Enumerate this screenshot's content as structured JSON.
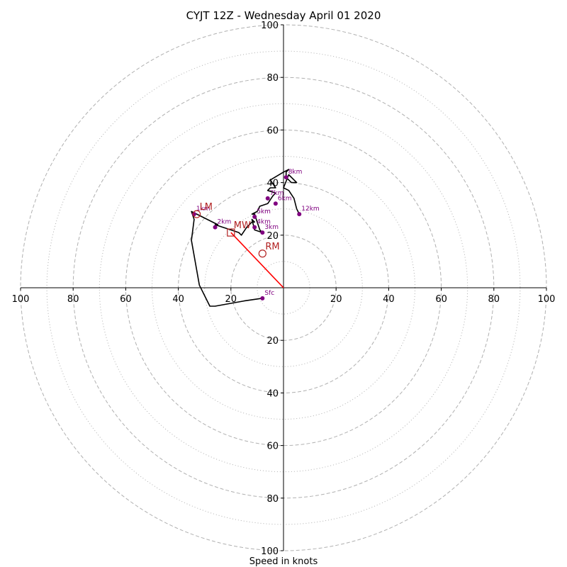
{
  "chart_data": {
    "type": "hodograph",
    "title": "CYJT 12Z - Wednesday April 01 2020",
    "xlabel": "Speed in knots",
    "range": 100,
    "ring_step": 10,
    "dashed_rings": [
      20,
      40,
      60,
      80,
      100
    ],
    "dotted_rings": [
      10,
      30,
      50,
      70,
      90
    ],
    "ticks_x": [
      {
        "value": -100,
        "label": "100"
      },
      {
        "value": -80,
        "label": "80"
      },
      {
        "value": -60,
        "label": "60"
      },
      {
        "value": -40,
        "label": "40"
      },
      {
        "value": -20,
        "label": "20"
      },
      {
        "value": 20,
        "label": "20"
      },
      {
        "value": 40,
        "label": "40"
      },
      {
        "value": 60,
        "label": "60"
      },
      {
        "value": 80,
        "label": "80"
      },
      {
        "value": 100,
        "label": "100"
      }
    ],
    "ticks_y": [
      {
        "value": 100,
        "label": "100"
      },
      {
        "value": 80,
        "label": "80"
      },
      {
        "value": 60,
        "label": "60"
      },
      {
        "value": 40,
        "label": "40"
      },
      {
        "value": 20,
        "label": "20"
      },
      {
        "value": -20,
        "label": "20"
      },
      {
        "value": -40,
        "label": "40"
      },
      {
        "value": -60,
        "label": "60"
      },
      {
        "value": -80,
        "label": "80"
      },
      {
        "value": -100,
        "label": "100"
      }
    ],
    "trace": [
      [
        -8,
        -4
      ],
      [
        -15,
        -5
      ],
      [
        -26,
        -7
      ],
      [
        -28,
        -7
      ],
      [
        -32,
        1
      ],
      [
        -35,
        18
      ],
      [
        -34,
        26
      ],
      [
        -35,
        29
      ],
      [
        -33,
        28
      ],
      [
        -25,
        24
      ],
      [
        -26,
        24
      ],
      [
        -23,
        23
      ],
      [
        -20,
        22
      ],
      [
        -17,
        21
      ],
      [
        -16,
        20
      ],
      [
        -14,
        23
      ],
      [
        -12,
        25
      ],
      [
        -11,
        25
      ],
      [
        -12,
        26
      ],
      [
        -11,
        22
      ],
      [
        -8,
        21
      ],
      [
        -9,
        22
      ],
      [
        -11,
        28
      ],
      [
        -12,
        28
      ],
      [
        -10,
        29
      ],
      [
        -9,
        31
      ],
      [
        -6,
        32
      ],
      [
        -4,
        35
      ],
      [
        -3,
        36
      ],
      [
        -6,
        37
      ],
      [
        -5,
        38
      ],
      [
        -3,
        38
      ],
      [
        -5,
        41
      ],
      [
        0,
        44
      ],
      [
        2,
        45
      ],
      [
        1,
        44
      ],
      [
        1,
        42
      ],
      [
        3,
        40
      ],
      [
        5,
        40
      ],
      [
        2,
        43
      ],
      [
        0,
        38
      ],
      [
        2,
        37
      ],
      [
        4,
        34
      ],
      [
        5,
        30
      ],
      [
        6,
        28
      ]
    ],
    "height_markers": [
      {
        "label": "Sfc",
        "u": -8,
        "v": -4
      },
      {
        "label": "1km",
        "u": -34,
        "v": 28
      },
      {
        "label": "2km",
        "u": -26,
        "v": 23
      },
      {
        "label": "3km",
        "u": -8,
        "v": 21
      },
      {
        "label": "4km",
        "u": -11,
        "v": 23
      },
      {
        "label": "5km",
        "u": -11,
        "v": 27
      },
      {
        "label": "6km",
        "u": -3,
        "v": 32
      },
      {
        "label": "7km",
        "u": -6,
        "v": 34
      },
      {
        "label": "8km",
        "u": 1,
        "v": 42
      },
      {
        "label": "12km",
        "u": 6,
        "v": 28
      }
    ],
    "storm_motion": [
      {
        "label": "LM",
        "u": -33,
        "v": 28,
        "shape": "circle"
      },
      {
        "label": "MW",
        "u": -20,
        "v": 21,
        "shape": "square"
      },
      {
        "label": "RM",
        "u": -8,
        "v": 13,
        "shape": "circle"
      }
    ],
    "mean_wind_vector": {
      "u": -20,
      "v": 21
    },
    "colors": {
      "trace": "#000000",
      "marker": "#800080",
      "storm": "#b22222",
      "vector": "#ff0000",
      "ring": "#b0b0b0"
    }
  }
}
